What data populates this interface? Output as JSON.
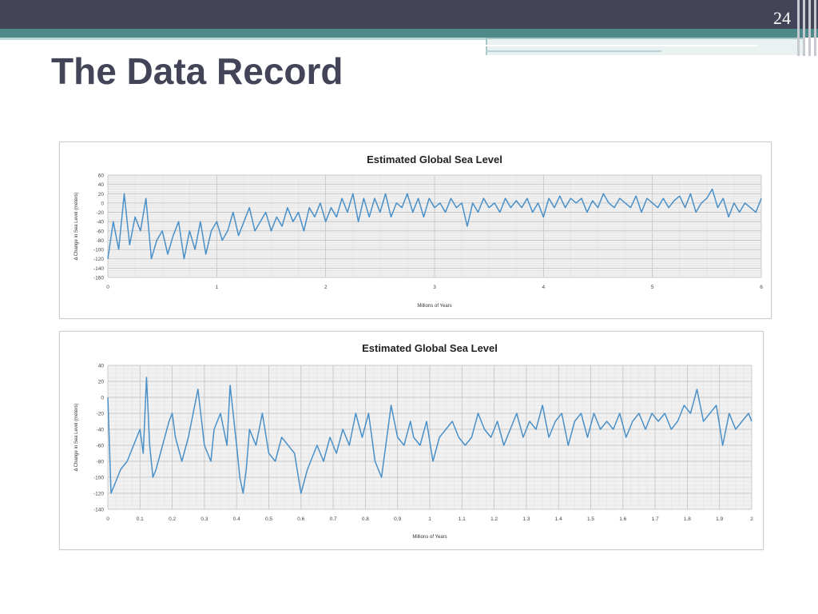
{
  "slide": {
    "title": "The Data Record",
    "number": "24"
  },
  "colors": {
    "header_dark": "#434457",
    "header_teal": "#4e8a8a",
    "series_line": "#4a90c8",
    "plot_bg": "#f1f1f1"
  },
  "chart_data": [
    {
      "type": "line",
      "title": "Estimated Global Sea Level",
      "xlabel": "Millions of Years",
      "ylabel": "Δ Change in Sea Level (meters)",
      "xlim": [
        0,
        6
      ],
      "ylim": [
        -160,
        60
      ],
      "xticks": [
        0,
        1,
        2,
        3,
        4,
        5,
        6
      ],
      "yticks": [
        60,
        40,
        20,
        0,
        -20,
        -40,
        -60,
        -80,
        -100,
        -120,
        -140,
        -160
      ],
      "grid": true,
      "series": [
        {
          "x": [
            0,
            0.05,
            0.1,
            0.15,
            0.2,
            0.25,
            0.3,
            0.35,
            0.4,
            0.45,
            0.5,
            0.55,
            0.6,
            0.65,
            0.7,
            0.75,
            0.8,
            0.85,
            0.9,
            0.95,
            1,
            1.05,
            1.1,
            1.15,
            1.2,
            1.25,
            1.3,
            1.35,
            1.4,
            1.45,
            1.5,
            1.55,
            1.6,
            1.65,
            1.7,
            1.75,
            1.8,
            1.85,
            1.9,
            1.95,
            2,
            2.05,
            2.1,
            2.15,
            2.2,
            2.25,
            2.3,
            2.35,
            2.4,
            2.45,
            2.5,
            2.55,
            2.6,
            2.65,
            2.7,
            2.75,
            2.8,
            2.85,
            2.9,
            2.95,
            3,
            3.05,
            3.1,
            3.15,
            3.2,
            3.25,
            3.3,
            3.35,
            3.4,
            3.45,
            3.5,
            3.55,
            3.6,
            3.65,
            3.7,
            3.75,
            3.8,
            3.85,
            3.9,
            3.95,
            4,
            4.05,
            4.1,
            4.15,
            4.2,
            4.25,
            4.3,
            4.35,
            4.4,
            4.45,
            4.5,
            4.55,
            4.6,
            4.65,
            4.7,
            4.75,
            4.8,
            4.85,
            4.9,
            4.95,
            5,
            5.05,
            5.1,
            5.15,
            5.2,
            5.25,
            5.3,
            5.35,
            5.4,
            5.45,
            5.5,
            5.55,
            5.6,
            5.65,
            5.7,
            5.75,
            5.8,
            5.85,
            5.9,
            5.95,
            6
          ],
          "y": [
            -120,
            -40,
            -100,
            20,
            -90,
            -30,
            -60,
            10,
            -120,
            -80,
            -60,
            -110,
            -70,
            -40,
            -120,
            -60,
            -100,
            -40,
            -110,
            -60,
            -40,
            -80,
            -60,
            -20,
            -70,
            -40,
            -10,
            -60,
            -40,
            -20,
            -60,
            -30,
            -50,
            -10,
            -40,
            -20,
            -60,
            -10,
            -30,
            0,
            -40,
            -10,
            -30,
            10,
            -20,
            20,
            -40,
            10,
            -30,
            10,
            -20,
            20,
            -30,
            0,
            -10,
            20,
            -20,
            10,
            -30,
            10,
            -10,
            0,
            -20,
            10,
            -10,
            0,
            -50,
            0,
            -20,
            10,
            -10,
            0,
            -20,
            10,
            -10,
            5,
            -10,
            10,
            -20,
            0,
            -30,
            10,
            -10,
            15,
            -10,
            10,
            0,
            10,
            -20,
            5,
            -10,
            20,
            0,
            -10,
            10,
            0,
            -10,
            15,
            -20,
            10,
            0,
            -10,
            10,
            -10,
            5,
            15,
            -10,
            20,
            -20,
            0,
            10,
            30,
            -10,
            10,
            -30,
            0,
            -20,
            0,
            -10,
            -20,
            10
          ]
        }
      ]
    },
    {
      "type": "line",
      "title": "Estimated Global Sea Level",
      "xlabel": "Millions of Years",
      "ylabel": "Δ Change in Sea Level (meters)",
      "xlim": [
        0,
        2
      ],
      "ylim": [
        -140,
        40
      ],
      "xticks": [
        0,
        0.1,
        0.2,
        0.3,
        0.4,
        0.5,
        0.6,
        0.7,
        0.8,
        0.9,
        1,
        1.1,
        1.2,
        1.3,
        1.4,
        1.5,
        1.6,
        1.7,
        1.8,
        1.9,
        2
      ],
      "yticks": [
        40,
        20,
        0,
        -20,
        -40,
        -60,
        -80,
        -100,
        -120,
        -140
      ],
      "grid": true,
      "series": [
        {
          "x": [
            0,
            0.01,
            0.02,
            0.04,
            0.06,
            0.08,
            0.1,
            0.11,
            0.12,
            0.13,
            0.14,
            0.15,
            0.17,
            0.19,
            0.2,
            0.21,
            0.23,
            0.25,
            0.26,
            0.28,
            0.3,
            0.32,
            0.33,
            0.35,
            0.37,
            0.38,
            0.4,
            0.41,
            0.42,
            0.43,
            0.44,
            0.46,
            0.48,
            0.5,
            0.52,
            0.54,
            0.56,
            0.58,
            0.6,
            0.62,
            0.63,
            0.65,
            0.67,
            0.69,
            0.71,
            0.73,
            0.75,
            0.77,
            0.79,
            0.81,
            0.83,
            0.85,
            0.87,
            0.88,
            0.9,
            0.92,
            0.94,
            0.95,
            0.97,
            0.99,
            1.01,
            1.03,
            1.05,
            1.07,
            1.09,
            1.11,
            1.13,
            1.15,
            1.17,
            1.19,
            1.21,
            1.23,
            1.25,
            1.27,
            1.29,
            1.31,
            1.33,
            1.35,
            1.37,
            1.39,
            1.41,
            1.43,
            1.45,
            1.47,
            1.49,
            1.51,
            1.53,
            1.55,
            1.57,
            1.59,
            1.61,
            1.63,
            1.65,
            1.67,
            1.69,
            1.71,
            1.73,
            1.75,
            1.77,
            1.79,
            1.81,
            1.83,
            1.85,
            1.87,
            1.89,
            1.91,
            1.93,
            1.95,
            1.97,
            1.99,
            2
          ],
          "y": [
            0,
            -120,
            -110,
            -90,
            -80,
            -60,
            -40,
            -70,
            25,
            -60,
            -100,
            -90,
            -60,
            -30,
            -20,
            -50,
            -80,
            -50,
            -30,
            10,
            -60,
            -80,
            -40,
            -20,
            -60,
            15,
            -60,
            -100,
            -120,
            -90,
            -40,
            -60,
            -20,
            -70,
            -80,
            -50,
            -60,
            -70,
            -120,
            -90,
            -80,
            -60,
            -80,
            -50,
            -70,
            -40,
            -60,
            -20,
            -50,
            -20,
            -80,
            -100,
            -40,
            -10,
            -50,
            -60,
            -30,
            -50,
            -60,
            -30,
            -80,
            -50,
            -40,
            -30,
            -50,
            -60,
            -50,
            -20,
            -40,
            -50,
            -30,
            -60,
            -40,
            -20,
            -50,
            -30,
            -40,
            -10,
            -50,
            -30,
            -20,
            -60,
            -30,
            -20,
            -50,
            -20,
            -40,
            -30,
            -40,
            -20,
            -50,
            -30,
            -20,
            -40,
            -20,
            -30,
            -20,
            -40,
            -30,
            -10,
            -20,
            10,
            -30,
            -20,
            -10,
            -60,
            -20,
            -40,
            -30,
            -20,
            -30
          ]
        }
      ]
    }
  ]
}
